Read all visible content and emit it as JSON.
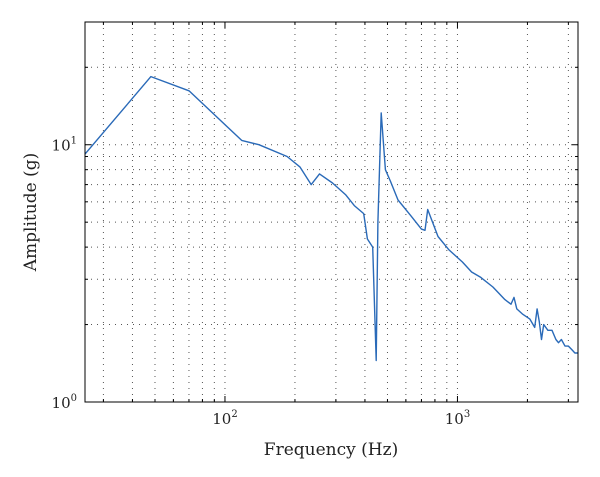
{
  "chart_data": {
    "type": "line",
    "xlabel": "Frequency (Hz)",
    "ylabel": "Amplitude (g)",
    "xscale": "log",
    "yscale": "log",
    "xlim": [
      25,
      3300
    ],
    "ylim": [
      1,
      30
    ],
    "grid": true,
    "x_major_ticks": [
      {
        "value": 100,
        "base": "10",
        "exp": "2"
      },
      {
        "value": 1000,
        "base": "10",
        "exp": "3"
      }
    ],
    "y_major_ticks": [
      {
        "value": 1,
        "base": "10",
        "exp": "0"
      },
      {
        "value": 10,
        "base": "10",
        "exp": "1"
      }
    ],
    "series": [
      {
        "color": "#2a6ab8",
        "x": [
          25,
          48,
          70,
          118,
          140,
          185,
          210,
          235,
          255,
          290,
          330,
          360,
          395,
          410,
          432,
          447,
          455,
          470,
          490,
          515,
          555,
          630,
          700,
          725,
          745,
          825,
          920,
          1050,
          1150,
          1260,
          1420,
          1600,
          1700,
          1750,
          1800,
          1900,
          2050,
          2150,
          2200,
          2250,
          2300,
          2350,
          2450,
          2550,
          2650,
          2720,
          2800,
          2900,
          3000,
          3100,
          3200,
          3300
        ],
        "y": [
          9.2,
          18.4,
          16.2,
          10.4,
          10.0,
          9.0,
          8.2,
          7.0,
          7.7,
          7.1,
          6.4,
          5.8,
          5.4,
          4.3,
          4.0,
          1.45,
          5.0,
          13.3,
          8.0,
          7.2,
          6.1,
          5.3,
          4.7,
          4.65,
          5.6,
          4.4,
          3.9,
          3.5,
          3.2,
          3.05,
          2.8,
          2.5,
          2.4,
          2.55,
          2.3,
          2.2,
          2.1,
          1.95,
          2.3,
          2.05,
          1.75,
          2.0,
          1.9,
          1.9,
          1.75,
          1.7,
          1.75,
          1.65,
          1.65,
          1.6,
          1.55,
          1.55
        ]
      }
    ]
  }
}
